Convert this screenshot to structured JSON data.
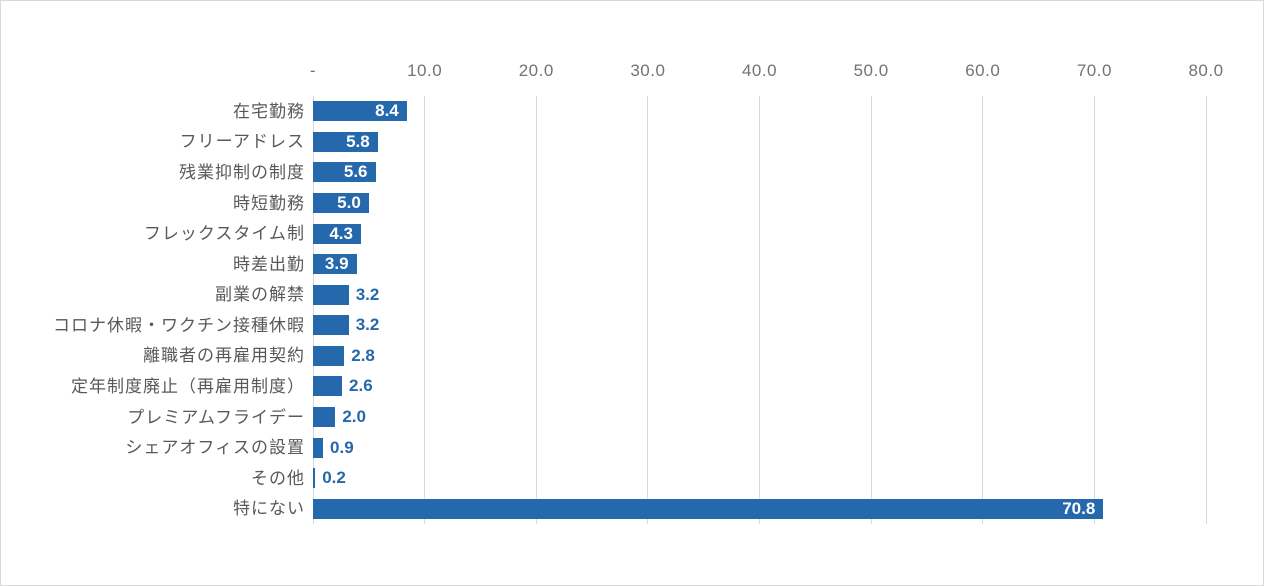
{
  "chart_data": {
    "type": "bar",
    "orientation": "horizontal",
    "title": "",
    "categories": [
      "在宅勤務",
      "フリーアドレス",
      "残業抑制の制度",
      "時短勤務",
      "フレックスタイム制",
      "時差出勤",
      "副業の解禁",
      "コロナ休暇・ワクチン接種休暇",
      "離職者の再雇用契約",
      "定年制度廃止（再雇用制度）",
      "プレミアムフライデー",
      "シェアオフィスの設置",
      "その他",
      "特にない"
    ],
    "values": [
      8.4,
      5.8,
      5.6,
      5.0,
      4.3,
      3.9,
      3.2,
      3.2,
      2.8,
      2.6,
      2.0,
      0.9,
      0.2,
      70.8
    ],
    "value_labels": [
      "8.4",
      "5.8",
      "5.6",
      "5.0",
      "4.3",
      "3.9",
      "3.2",
      "3.2",
      "2.8",
      "2.6",
      "2.0",
      "0.9",
      "0.2",
      "70.8"
    ],
    "x_axis": {
      "position": "top",
      "min": 0,
      "max": 80,
      "ticks": [
        0,
        10,
        20,
        30,
        40,
        50,
        60,
        70,
        80
      ],
      "tick_labels": [
        "-",
        "10.0",
        "20.0",
        "30.0",
        "40.0",
        "50.0",
        "60.0",
        "70.0",
        "80.0"
      ]
    },
    "grid": true,
    "legend": "none",
    "colors": {
      "bar": "#2568ac",
      "value_label_inside": "#ffffff",
      "value_label_outside": "#2568ac",
      "gridline": "#d9d9d9",
      "axis_text": "#737373",
      "category_text": "#595959"
    }
  }
}
